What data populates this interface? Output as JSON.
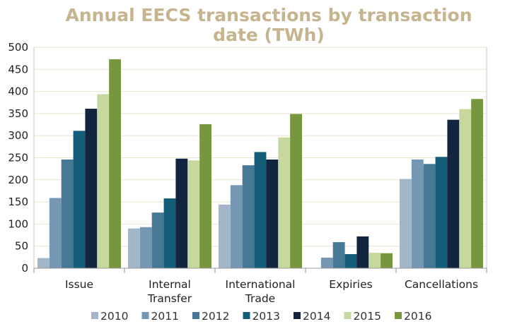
{
  "chart_data": {
    "type": "bar",
    "title": "Annual EECS transactions by transaction date (TWh)",
    "title_lines": [
      "Annual EECS transactions by transaction",
      "date (TWh)"
    ],
    "title_color": "#c6b48f",
    "xlabel": "",
    "ylabel": "",
    "ylim": [
      0,
      500
    ],
    "yticks": [
      0,
      50,
      100,
      150,
      200,
      250,
      300,
      350,
      400,
      450,
      500
    ],
    "grid": true,
    "grid_color": "#e9e2cf",
    "legend_position": "bottom",
    "categories": [
      {
        "label": [
          "Issue"
        ]
      },
      {
        "label": [
          "Internal",
          "Transfer"
        ]
      },
      {
        "label": [
          "International",
          "Trade"
        ]
      },
      {
        "label": [
          "Expiries"
        ]
      },
      {
        "label": [
          "Cancellations"
        ]
      }
    ],
    "series": [
      {
        "name": "2010",
        "color": "#a3b6c9",
        "values": [
          23,
          90,
          144,
          0,
          202
        ]
      },
      {
        "name": "2011",
        "color": "#7697b3",
        "values": [
          159,
          93,
          188,
          24,
          246
        ]
      },
      {
        "name": "2012",
        "color": "#477896",
        "values": [
          246,
          126,
          233,
          59,
          236
        ]
      },
      {
        "name": "2013",
        "color": "#155e7a",
        "values": [
          311,
          158,
          263,
          32,
          252
        ]
      },
      {
        "name": "2014",
        "color": "#12243f",
        "values": [
          361,
          248,
          246,
          72,
          336
        ]
      },
      {
        "name": "2015",
        "color": "#c6d89d",
        "values": [
          394,
          244,
          296,
          35,
          360
        ]
      },
      {
        "name": "2016",
        "color": "#76973d",
        "values": [
          473,
          326,
          349,
          34,
          383
        ]
      }
    ]
  }
}
